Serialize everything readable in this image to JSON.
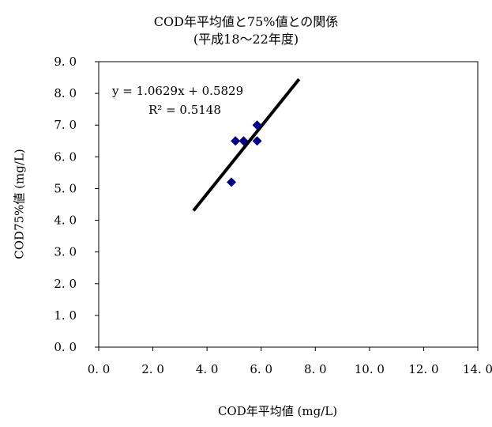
{
  "chart_data": {
    "type": "scatter",
    "title": "COD年平均値と75%値との関係",
    "subtitle": "(平成18～22年度)",
    "xlabel": "COD年平均値 (mg/L)",
    "ylabel": "COD75%値 (mg/L)",
    "xlim": [
      0,
      14
    ],
    "ylim": [
      0,
      9
    ],
    "x_ticks": [
      0,
      2,
      4,
      6,
      8,
      10,
      12,
      14
    ],
    "y_ticks": [
      0,
      1,
      2,
      3,
      4,
      5,
      6,
      7,
      8,
      9
    ],
    "x_tick_labels": [
      "0. 0",
      "2. 0",
      "4. 0",
      "6. 0",
      "8. 0",
      "10. 0",
      "12. 0",
      "14. 0"
    ],
    "y_tick_labels": [
      "0. 0",
      "1. 0",
      "2. 0",
      "3. 0",
      "4. 0",
      "5. 0",
      "6. 0",
      "7. 0",
      "8. 0",
      "9. 0"
    ],
    "grid": false,
    "points": [
      {
        "x": 4.9,
        "y": 5.2
      },
      {
        "x": 5.05,
        "y": 6.5
      },
      {
        "x": 5.35,
        "y": 6.5
      },
      {
        "x": 5.85,
        "y": 7.0
      },
      {
        "x": 5.85,
        "y": 6.5
      }
    ],
    "marker_color": "#000080",
    "trendline": {
      "slope": 1.0629,
      "intercept": 0.5829,
      "x_range": [
        3.5,
        7.4
      ],
      "color": "#000000",
      "equation": "y = 1.0629x + 0.5829",
      "r2": "R² = 0.5148"
    }
  }
}
